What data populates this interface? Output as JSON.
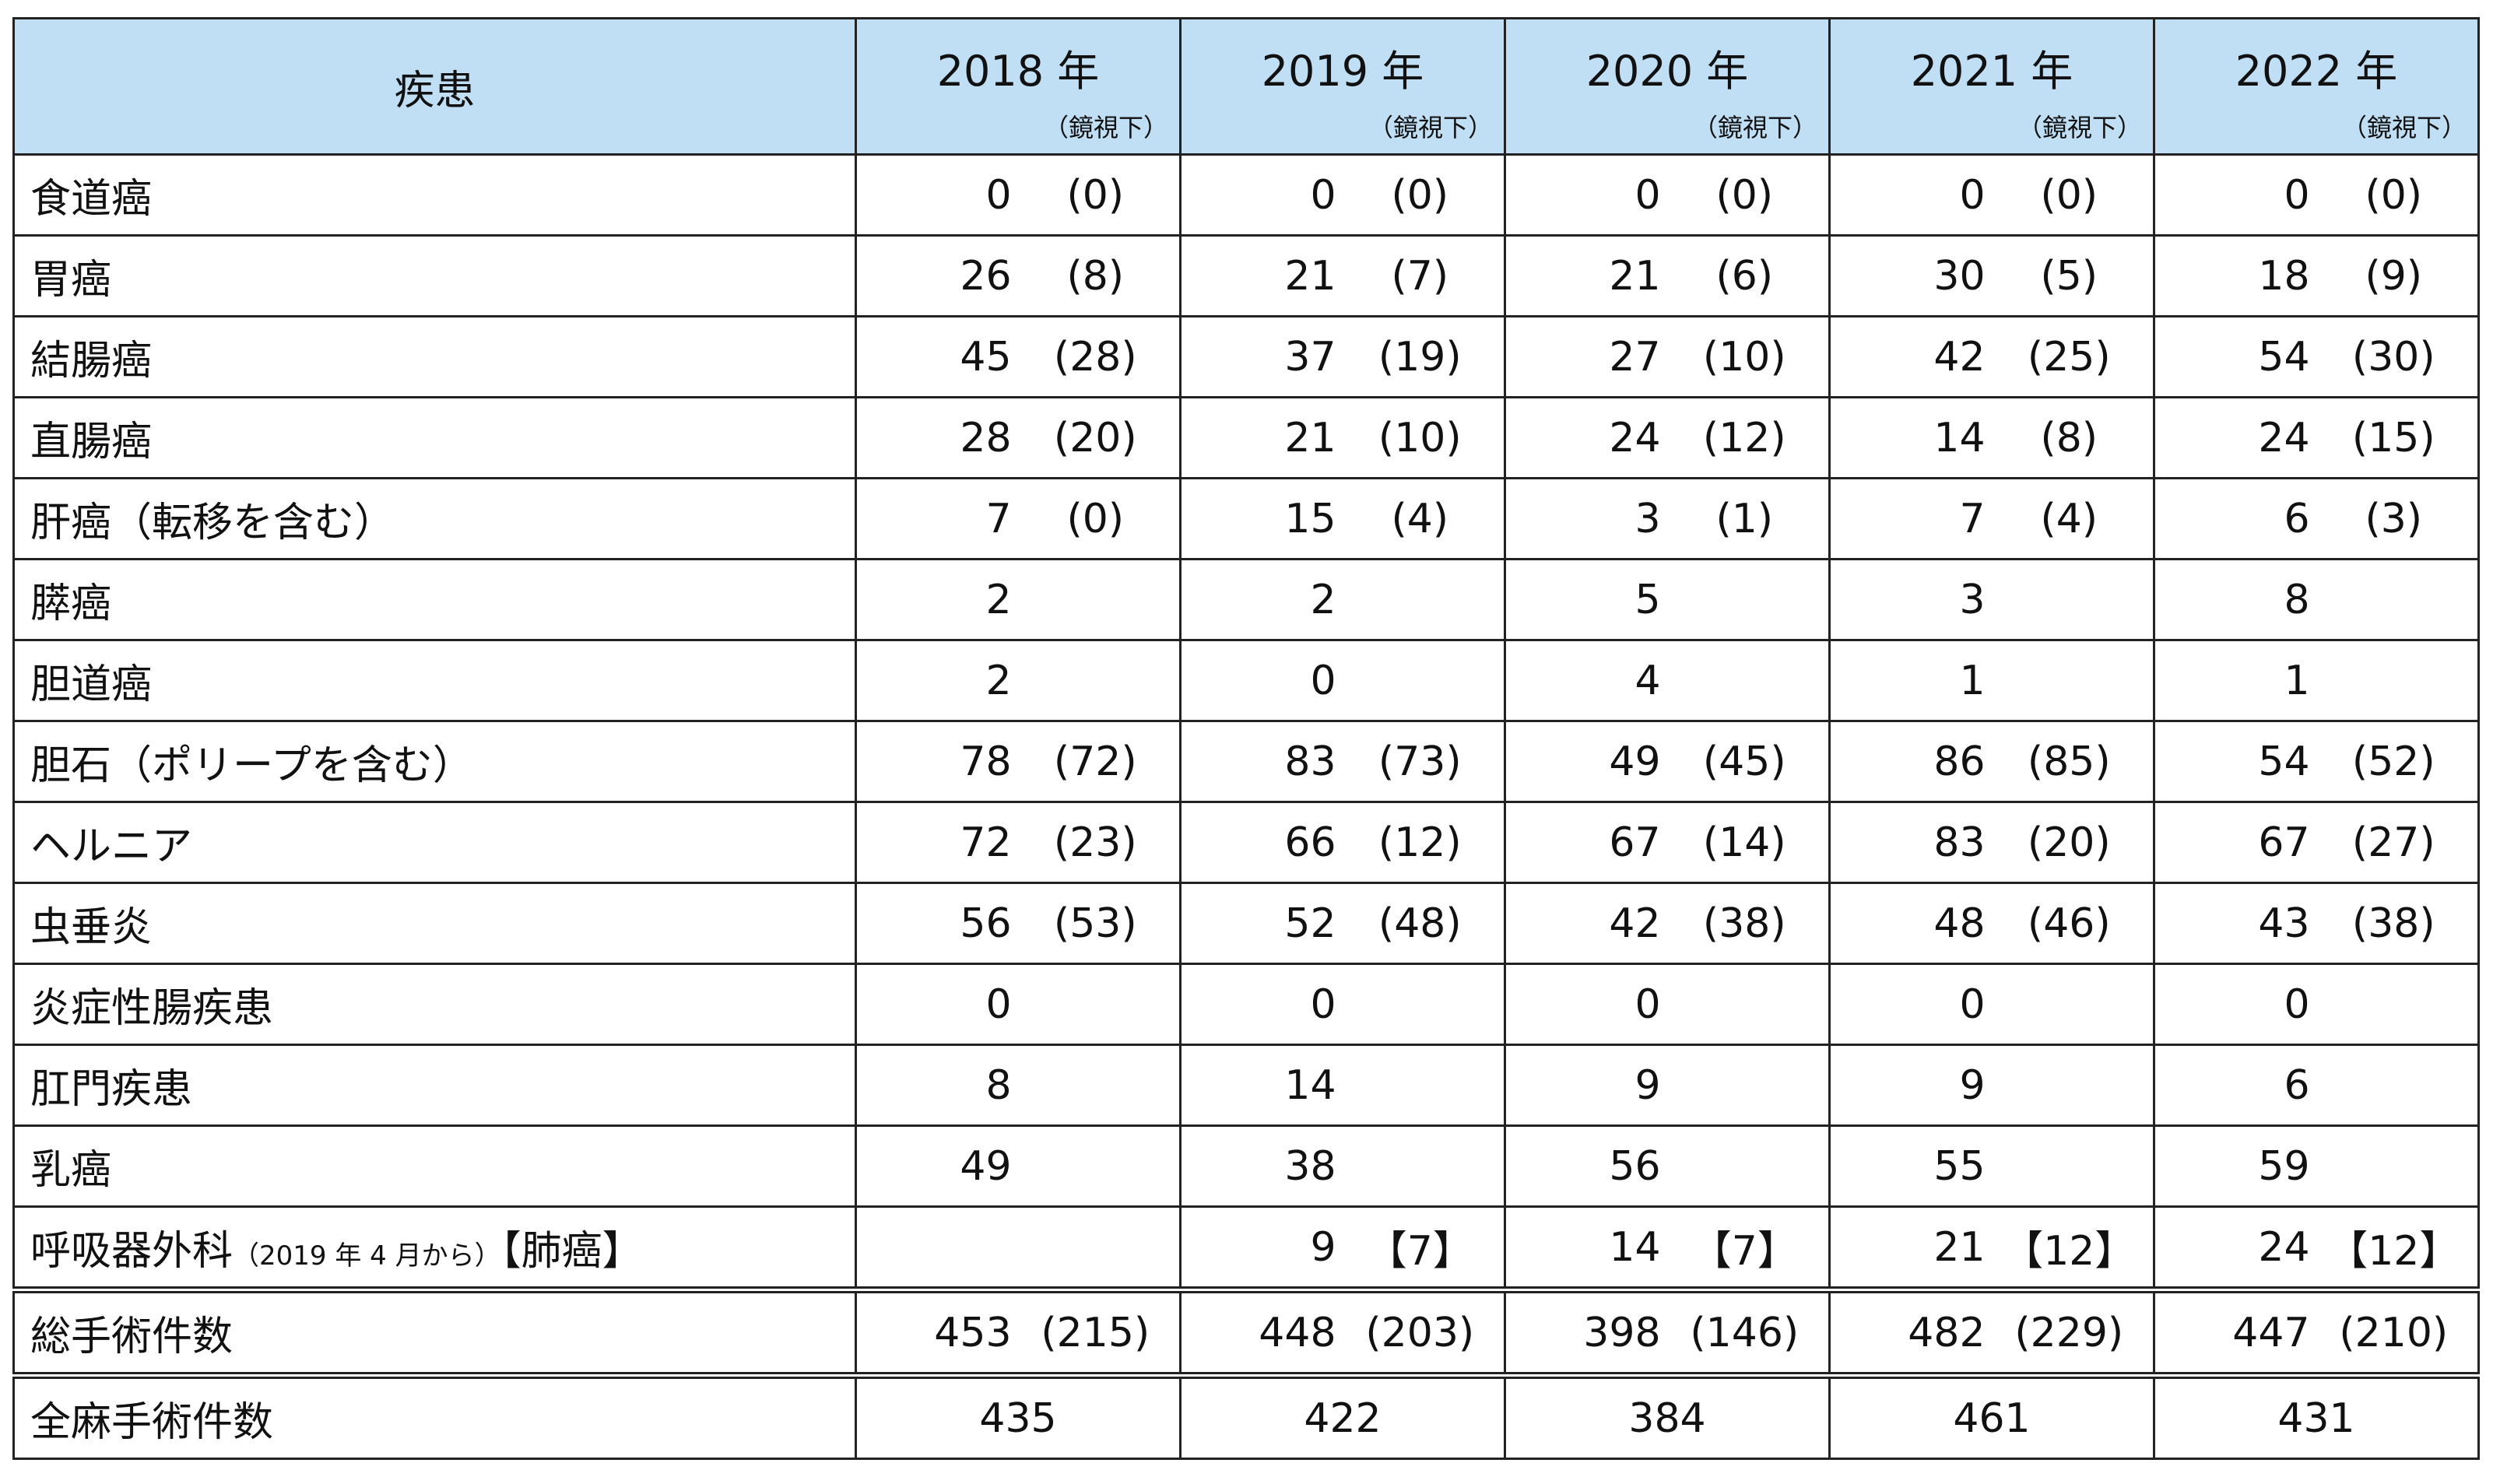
{
  "header": {
    "disease": "疾患",
    "scope_note": "（鏡視下）",
    "years": [
      "2018 年",
      "2019 年",
      "2020 年",
      "2021 年",
      "2022 年"
    ]
  },
  "rows": [
    {
      "name": "食道癌",
      "values": [
        [
          "0",
          "(0)"
        ],
        [
          "0",
          "(0)"
        ],
        [
          "0",
          "(0)"
        ],
        [
          "0",
          "(0)"
        ],
        [
          "0",
          "(0)"
        ]
      ]
    },
    {
      "name": "胃癌",
      "values": [
        [
          "26",
          "(8)"
        ],
        [
          "21",
          "(7)"
        ],
        [
          "21",
          "(6)"
        ],
        [
          "30",
          "(5)"
        ],
        [
          "18",
          "(9)"
        ]
      ]
    },
    {
      "name": "結腸癌",
      "values": [
        [
          "45",
          "(28)"
        ],
        [
          "37",
          "(19)"
        ],
        [
          "27",
          "(10)"
        ],
        [
          "42",
          "(25)"
        ],
        [
          "54",
          "(30)"
        ]
      ]
    },
    {
      "name": "直腸癌",
      "values": [
        [
          "28",
          "(20)"
        ],
        [
          "21",
          "(10)"
        ],
        [
          "24",
          "(12)"
        ],
        [
          "14",
          "(8)"
        ],
        [
          "24",
          "(15)"
        ]
      ]
    },
    {
      "name": "肝癌（転移を含む）",
      "values": [
        [
          "7",
          "(0)"
        ],
        [
          "15",
          "(4)"
        ],
        [
          "3",
          "(1)"
        ],
        [
          "7",
          "(4)"
        ],
        [
          "6",
          "(3)"
        ]
      ]
    },
    {
      "name": "膵癌",
      "values": [
        [
          "2",
          ""
        ],
        [
          "2",
          ""
        ],
        [
          "5",
          ""
        ],
        [
          "3",
          ""
        ],
        [
          "8",
          ""
        ]
      ]
    },
    {
      "name": "胆道癌",
      "values": [
        [
          "2",
          ""
        ],
        [
          "0",
          ""
        ],
        [
          "4",
          ""
        ],
        [
          "1",
          ""
        ],
        [
          "1",
          ""
        ]
      ]
    },
    {
      "name": "胆石（ポリープを含む）",
      "values": [
        [
          "78",
          "(72)"
        ],
        [
          "83",
          "(73)"
        ],
        [
          "49",
          "(45)"
        ],
        [
          "86",
          "(85)"
        ],
        [
          "54",
          "(52)"
        ]
      ]
    },
    {
      "name": "ヘルニア",
      "values": [
        [
          "72",
          "(23)"
        ],
        [
          "66",
          "(12)"
        ],
        [
          "67",
          "(14)"
        ],
        [
          "83",
          "(20)"
        ],
        [
          "67",
          "(27)"
        ]
      ]
    },
    {
      "name": "虫垂炎",
      "values": [
        [
          "56",
          "(53)"
        ],
        [
          "52",
          "(48)"
        ],
        [
          "42",
          "(38)"
        ],
        [
          "48",
          "(46)"
        ],
        [
          "43",
          "(38)"
        ]
      ]
    },
    {
      "name": "炎症性腸疾患",
      "values": [
        [
          "0",
          ""
        ],
        [
          "0",
          ""
        ],
        [
          "0",
          ""
        ],
        [
          "0",
          ""
        ],
        [
          "0",
          ""
        ]
      ]
    },
    {
      "name": "肛門疾患",
      "values": [
        [
          "8",
          ""
        ],
        [
          "14",
          ""
        ],
        [
          "9",
          ""
        ],
        [
          "9",
          ""
        ],
        [
          "6",
          ""
        ]
      ]
    },
    {
      "name": "乳癌",
      "values": [
        [
          "49",
          ""
        ],
        [
          "38",
          ""
        ],
        [
          "56",
          ""
        ],
        [
          "55",
          ""
        ],
        [
          "59",
          ""
        ]
      ]
    }
  ],
  "thoracic": {
    "name": "呼吸器外科",
    "note": "（2019 年 4 月から）",
    "suffix": "【肺癌】",
    "values": [
      [
        "",
        ""
      ],
      [
        "9",
        "【7】"
      ],
      [
        "14",
        "【7】"
      ],
      [
        "21",
        "【12】"
      ],
      [
        "24",
        "【12】"
      ]
    ]
  },
  "total": {
    "label": "総手術件数",
    "values": [
      [
        "453",
        "(215)"
      ],
      [
        "448",
        "(203)"
      ],
      [
        "398",
        "(146)"
      ],
      [
        "482",
        "(229)"
      ],
      [
        "447",
        "(210)"
      ]
    ]
  },
  "general_anesthesia": {
    "label": "全麻手術件数",
    "values": [
      "435",
      "422",
      "384",
      "461",
      "431"
    ]
  }
}
